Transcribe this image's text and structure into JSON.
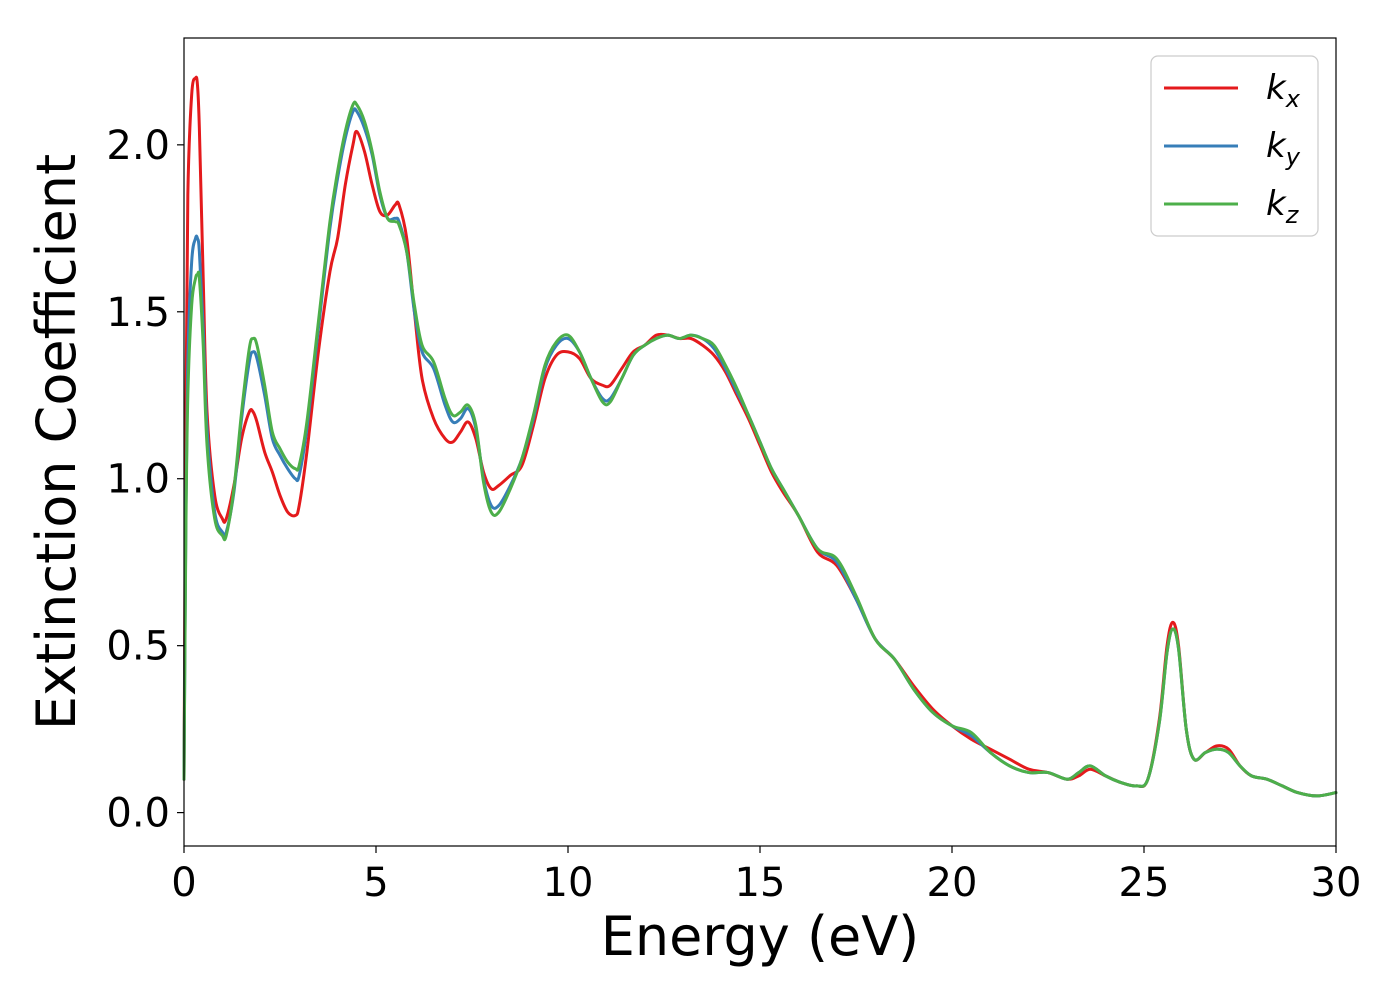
{
  "chart_data": {
    "type": "line",
    "title": "",
    "xlabel": "Energy (eV)",
    "ylabel": "Extinction Coefficient",
    "xlim": [
      0,
      30
    ],
    "ylim": [
      -0.1,
      2.32
    ],
    "xticks": [
      0,
      5,
      10,
      15,
      20,
      25,
      30
    ],
    "xtick_labels": [
      "0",
      "5",
      "10",
      "15",
      "20",
      "25",
      "30"
    ],
    "yticks": [
      0.0,
      0.5,
      1.0,
      1.5,
      2.0
    ],
    "ytick_labels": [
      "0.0",
      "0.5",
      "1.0",
      "1.5",
      "2.0"
    ],
    "grid": false,
    "legend_position": "top-right",
    "series": [
      {
        "name": "k",
        "subscript": "x",
        "color": "#e41a1c",
        "x": [
          0,
          0.05,
          0.1,
          0.2,
          0.3,
          0.35,
          0.4,
          0.5,
          0.6,
          0.8,
          1.0,
          1.1,
          1.3,
          1.5,
          1.7,
          1.8,
          1.9,
          2.1,
          2.3,
          2.5,
          2.7,
          2.9,
          3.0,
          3.2,
          3.5,
          3.8,
          4.0,
          4.2,
          4.4,
          4.5,
          4.7,
          4.9,
          5.1,
          5.3,
          5.5,
          5.6,
          5.8,
          6.0,
          6.2,
          6.5,
          6.8,
          7.0,
          7.2,
          7.4,
          7.6,
          7.8,
          8.0,
          8.2,
          8.5,
          8.8,
          9.1,
          9.4,
          9.7,
          10.0,
          10.3,
          10.6,
          10.9,
          11.1,
          11.4,
          11.7,
          12.0,
          12.3,
          12.6,
          12.9,
          13.2,
          13.5,
          13.8,
          14.1,
          14.4,
          14.7,
          15.0,
          15.3,
          15.6,
          16.0,
          16.5,
          17.0,
          17.5,
          18.0,
          18.5,
          19.0,
          19.5,
          20.0,
          20.5,
          21.0,
          21.5,
          22.0,
          22.5,
          23.0,
          23.3,
          23.6,
          24.0,
          24.4,
          24.8,
          25.1,
          25.4,
          25.6,
          25.75,
          25.9,
          26.1,
          26.3,
          26.6,
          26.9,
          27.2,
          27.5,
          27.8,
          28.2,
          28.6,
          29.0,
          29.5,
          30.0
        ],
        "y": [
          0.1,
          1.2,
          1.85,
          2.15,
          2.2,
          2.18,
          2.05,
          1.6,
          1.2,
          0.95,
          0.88,
          0.88,
          0.98,
          1.12,
          1.2,
          1.2,
          1.17,
          1.08,
          1.02,
          0.95,
          0.9,
          0.89,
          0.92,
          1.08,
          1.38,
          1.62,
          1.72,
          1.88,
          2.0,
          2.04,
          1.98,
          1.88,
          1.8,
          1.79,
          1.82,
          1.82,
          1.72,
          1.5,
          1.3,
          1.18,
          1.12,
          1.11,
          1.14,
          1.17,
          1.12,
          1.02,
          0.97,
          0.98,
          1.01,
          1.04,
          1.16,
          1.3,
          1.37,
          1.38,
          1.36,
          1.3,
          1.28,
          1.28,
          1.33,
          1.38,
          1.4,
          1.43,
          1.43,
          1.42,
          1.42,
          1.4,
          1.37,
          1.32,
          1.25,
          1.18,
          1.1,
          1.02,
          0.96,
          0.89,
          0.78,
          0.74,
          0.64,
          0.52,
          0.46,
          0.38,
          0.31,
          0.26,
          0.22,
          0.19,
          0.16,
          0.13,
          0.12,
          0.1,
          0.11,
          0.13,
          0.11,
          0.09,
          0.08,
          0.1,
          0.28,
          0.5,
          0.57,
          0.5,
          0.25,
          0.16,
          0.18,
          0.2,
          0.19,
          0.14,
          0.11,
          0.1,
          0.08,
          0.06,
          0.05,
          0.06
        ]
      },
      {
        "name": "k",
        "subscript": "y",
        "color": "#377eb8",
        "x": [
          0,
          0.05,
          0.1,
          0.2,
          0.3,
          0.35,
          0.4,
          0.5,
          0.6,
          0.8,
          1.0,
          1.1,
          1.3,
          1.5,
          1.7,
          1.8,
          1.9,
          2.1,
          2.3,
          2.5,
          2.7,
          2.9,
          3.0,
          3.2,
          3.5,
          3.8,
          4.0,
          4.2,
          4.4,
          4.5,
          4.7,
          4.9,
          5.1,
          5.3,
          5.5,
          5.6,
          5.8,
          6.0,
          6.2,
          6.5,
          6.8,
          7.0,
          7.2,
          7.4,
          7.6,
          7.8,
          8.0,
          8.2,
          8.5,
          8.8,
          9.1,
          9.4,
          9.7,
          10.0,
          10.3,
          10.6,
          10.9,
          11.1,
          11.4,
          11.7,
          12.0,
          12.3,
          12.6,
          12.9,
          13.2,
          13.5,
          13.8,
          14.1,
          14.4,
          14.7,
          15.0,
          15.3,
          15.6,
          16.0,
          16.5,
          17.0,
          17.5,
          18.0,
          18.5,
          19.0,
          19.5,
          20.0,
          20.5,
          21.0,
          21.5,
          22.0,
          22.5,
          23.0,
          23.3,
          23.6,
          24.0,
          24.4,
          24.8,
          25.1,
          25.4,
          25.6,
          25.75,
          25.9,
          26.1,
          26.3,
          26.6,
          26.9,
          27.2,
          27.5,
          27.8,
          28.2,
          28.6,
          29.0,
          29.5,
          30.0
        ],
        "y": [
          0.1,
          0.9,
          1.35,
          1.65,
          1.72,
          1.72,
          1.68,
          1.45,
          1.15,
          0.9,
          0.84,
          0.84,
          0.96,
          1.18,
          1.35,
          1.38,
          1.36,
          1.25,
          1.12,
          1.07,
          1.03,
          1.0,
          1.01,
          1.15,
          1.45,
          1.75,
          1.9,
          2.02,
          2.1,
          2.1,
          2.05,
          1.97,
          1.85,
          1.78,
          1.78,
          1.77,
          1.68,
          1.5,
          1.38,
          1.33,
          1.22,
          1.17,
          1.18,
          1.21,
          1.15,
          1.0,
          0.92,
          0.92,
          0.98,
          1.06,
          1.18,
          1.33,
          1.4,
          1.42,
          1.38,
          1.3,
          1.24,
          1.24,
          1.3,
          1.37,
          1.4,
          1.42,
          1.43,
          1.42,
          1.43,
          1.42,
          1.39,
          1.33,
          1.26,
          1.19,
          1.11,
          1.03,
          0.97,
          0.89,
          0.79,
          0.75,
          0.64,
          0.52,
          0.46,
          0.37,
          0.3,
          0.26,
          0.23,
          0.18,
          0.14,
          0.12,
          0.12,
          0.1,
          0.12,
          0.14,
          0.11,
          0.09,
          0.08,
          0.1,
          0.27,
          0.48,
          0.55,
          0.49,
          0.25,
          0.16,
          0.18,
          0.19,
          0.18,
          0.14,
          0.11,
          0.1,
          0.08,
          0.06,
          0.05,
          0.06
        ]
      },
      {
        "name": "k",
        "subscript": "z",
        "color": "#4daf4a",
        "x": [
          0,
          0.05,
          0.1,
          0.2,
          0.3,
          0.35,
          0.4,
          0.5,
          0.6,
          0.8,
          1.0,
          1.1,
          1.3,
          1.5,
          1.7,
          1.8,
          1.9,
          2.1,
          2.3,
          2.5,
          2.7,
          2.9,
          3.0,
          3.2,
          3.5,
          3.8,
          4.0,
          4.2,
          4.4,
          4.5,
          4.7,
          4.9,
          5.1,
          5.3,
          5.5,
          5.6,
          5.8,
          6.0,
          6.2,
          6.5,
          6.8,
          7.0,
          7.2,
          7.4,
          7.6,
          7.8,
          8.0,
          8.2,
          8.5,
          8.8,
          9.1,
          9.4,
          9.7,
          10.0,
          10.3,
          10.6,
          10.9,
          11.1,
          11.4,
          11.7,
          12.0,
          12.3,
          12.6,
          12.9,
          13.2,
          13.5,
          13.8,
          14.1,
          14.4,
          14.7,
          15.0,
          15.3,
          15.6,
          16.0,
          16.5,
          17.0,
          17.5,
          18.0,
          18.5,
          19.0,
          19.5,
          20.0,
          20.5,
          21.0,
          21.5,
          22.0,
          22.5,
          23.0,
          23.3,
          23.6,
          24.0,
          24.4,
          24.8,
          25.1,
          25.4,
          25.6,
          25.75,
          25.9,
          26.1,
          26.3,
          26.6,
          26.9,
          27.2,
          27.5,
          27.8,
          28.2,
          28.6,
          29.0,
          29.5,
          30.0
        ],
        "y": [
          0.1,
          0.85,
          1.25,
          1.52,
          1.6,
          1.61,
          1.6,
          1.4,
          1.1,
          0.88,
          0.83,
          0.83,
          0.97,
          1.2,
          1.39,
          1.42,
          1.4,
          1.28,
          1.14,
          1.09,
          1.05,
          1.03,
          1.04,
          1.17,
          1.47,
          1.77,
          1.92,
          2.04,
          2.12,
          2.12,
          2.07,
          1.98,
          1.86,
          1.78,
          1.77,
          1.76,
          1.68,
          1.52,
          1.4,
          1.35,
          1.24,
          1.19,
          1.2,
          1.22,
          1.16,
          0.99,
          0.9,
          0.9,
          0.97,
          1.06,
          1.19,
          1.34,
          1.41,
          1.43,
          1.38,
          1.3,
          1.23,
          1.23,
          1.3,
          1.37,
          1.4,
          1.42,
          1.43,
          1.42,
          1.43,
          1.42,
          1.4,
          1.34,
          1.27,
          1.19,
          1.11,
          1.03,
          0.97,
          0.89,
          0.79,
          0.76,
          0.65,
          0.52,
          0.46,
          0.37,
          0.3,
          0.26,
          0.24,
          0.18,
          0.14,
          0.12,
          0.12,
          0.1,
          0.12,
          0.14,
          0.11,
          0.09,
          0.08,
          0.1,
          0.27,
          0.48,
          0.55,
          0.49,
          0.25,
          0.16,
          0.18,
          0.19,
          0.18,
          0.14,
          0.11,
          0.1,
          0.08,
          0.06,
          0.05,
          0.06
        ]
      }
    ]
  }
}
